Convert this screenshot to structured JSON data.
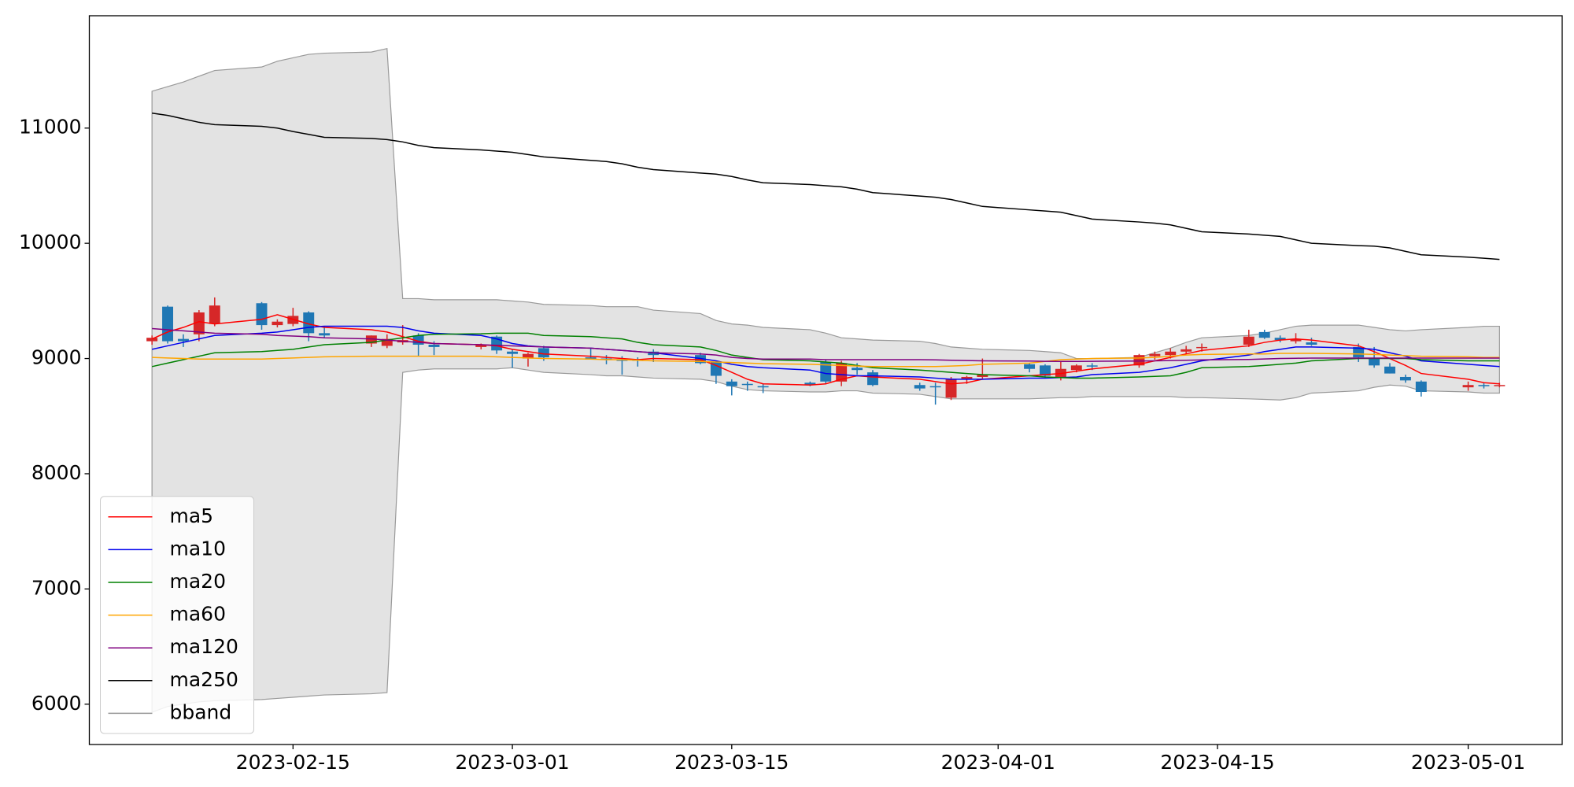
{
  "chart_data": {
    "type": "candlestick",
    "x": [
      "2023-02-06",
      "2023-02-07",
      "2023-02-08",
      "2023-02-09",
      "2023-02-10",
      "2023-02-13",
      "2023-02-14",
      "2023-02-15",
      "2023-02-16",
      "2023-02-17",
      "2023-02-20",
      "2023-02-21",
      "2023-02-22",
      "2023-02-23",
      "2023-02-24",
      "2023-02-27",
      "2023-02-28",
      "2023-03-01",
      "2023-03-02",
      "2023-03-03",
      "2023-03-06",
      "2023-03-07",
      "2023-03-08",
      "2023-03-09",
      "2023-03-10",
      "2023-03-13",
      "2023-03-14",
      "2023-03-15",
      "2023-03-16",
      "2023-03-17",
      "2023-03-20",
      "2023-03-21",
      "2023-03-22",
      "2023-03-23",
      "2023-03-24",
      "2023-03-27",
      "2023-03-28",
      "2023-03-29",
      "2023-03-30",
      "2023-03-31",
      "2023-04-03",
      "2023-04-04",
      "2023-04-05",
      "2023-04-06",
      "2023-04-07",
      "2023-04-10",
      "2023-04-11",
      "2023-04-12",
      "2023-04-13",
      "2023-04-14",
      "2023-04-17",
      "2023-04-18",
      "2023-04-19",
      "2023-04-20",
      "2023-04-21",
      "2023-04-24",
      "2023-04-25",
      "2023-04-26",
      "2023-04-27",
      "2023-04-28",
      "2023-05-01",
      "2023-05-02",
      "2023-05-03"
    ],
    "ohlc": {
      "up_color": "#d62728",
      "down_color": "#1f77b4",
      "open": [
        9150,
        9450,
        9170,
        9210,
        9300,
        9480,
        9290,
        9300,
        9400,
        9220,
        9130,
        9110,
        9140,
        9200,
        9120,
        9100,
        9190,
        9060,
        9000,
        9090,
        9010,
        9000,
        8990,
        8990,
        9060,
        9030,
        8970,
        8800,
        8780,
        8760,
        8790,
        8970,
        8800,
        8920,
        8880,
        8770,
        8760,
        8660,
        8820,
        8840,
        8950,
        8940,
        8830,
        8900,
        8940,
        8940,
        9020,
        9030,
        9060,
        9090,
        9120,
        9230,
        9180,
        9150,
        9140,
        9100,
        9000,
        8930,
        8840,
        8800,
        8750,
        8770,
        8760
      ],
      "high": [
        9200,
        9460,
        9210,
        9420,
        9530,
        9490,
        9340,
        9440,
        9410,
        9280,
        9200,
        9210,
        9290,
        9220,
        9150,
        9130,
        9200,
        9080,
        9050,
        9110,
        9090,
        9030,
        9020,
        9010,
        9080,
        9050,
        8980,
        8820,
        8800,
        8780,
        8800,
        8990,
        8980,
        8960,
        8900,
        8790,
        8790,
        8840,
        8850,
        9000,
        8960,
        8950,
        8970,
        8950,
        8960,
        9040,
        9060,
        9090,
        9110,
        9130,
        9250,
        9250,
        9200,
        9220,
        9180,
        9130,
        9100,
        8960,
        8860,
        8810,
        8800,
        8790,
        8790
      ],
      "low": [
        9120,
        9130,
        9100,
        9150,
        9280,
        9250,
        9270,
        9280,
        9150,
        9180,
        9100,
        9090,
        9120,
        9020,
        9030,
        9080,
        9040,
        8920,
        8930,
        8980,
        8990,
        8950,
        8860,
        8930,
        8970,
        8950,
        8780,
        8680,
        8720,
        8700,
        8760,
        8780,
        8760,
        8860,
        8760,
        8720,
        8600,
        8640,
        8780,
        8820,
        8880,
        8830,
        8810,
        8880,
        8900,
        8920,
        8990,
        9000,
        9040,
        9060,
        9100,
        9170,
        9140,
        9130,
        9110,
        8970,
        8920,
        8870,
        8790,
        8670,
        8720,
        8740,
        8750
      ],
      "close": [
        9180,
        9150,
        9150,
        9400,
        9460,
        9290,
        9320,
        9370,
        9220,
        9200,
        9200,
        9170,
        9160,
        9120,
        9100,
        9120,
        9070,
        9040,
        9040,
        9010,
        8990,
        8990,
        8980,
        8980,
        9030,
        8960,
        8850,
        8760,
        8770,
        8750,
        8770,
        8800,
        8960,
        8900,
        8770,
        8740,
        8750,
        8820,
        8840,
        8860,
        8910,
        8850,
        8910,
        8940,
        8930,
        9030,
        9040,
        9060,
        9080,
        9100,
        9190,
        9180,
        9160,
        9170,
        9120,
        9010,
        8940,
        8870,
        8810,
        8710,
        8770,
        8760,
        8770
      ]
    },
    "series": [
      {
        "name": "ma5",
        "color": "#ff0000",
        "values": [
          9170,
          9230,
          9270,
          9320,
          9300,
          9340,
          9380,
          9340,
          9300,
          9270,
          9250,
          9230,
          9190,
          9150,
          9130,
          9120,
          9110,
          9080,
          9060,
          9040,
          9020,
          9010,
          9000,
          8990,
          9000,
          8990,
          8940,
          8880,
          8820,
          8780,
          8770,
          8780,
          8820,
          8850,
          8840,
          8820,
          8800,
          8780,
          8790,
          8820,
          8850,
          8860,
          8870,
          8890,
          8910,
          8950,
          8980,
          9010,
          9040,
          9070,
          9110,
          9140,
          9160,
          9170,
          9160,
          9110,
          9060,
          9000,
          8940,
          8870,
          8820,
          8790,
          8780
        ]
      },
      {
        "name": "ma10",
        "color": "#0000ee",
        "values": [
          9080,
          9110,
          9140,
          9170,
          9200,
          9220,
          9230,
          9250,
          9270,
          9280,
          9280,
          9280,
          9270,
          9240,
          9220,
          9200,
          9170,
          9130,
          9110,
          9100,
          9090,
          9080,
          9070,
          9060,
          9050,
          9000,
          8980,
          8950,
          8930,
          8920,
          8900,
          8870,
          8860,
          8850,
          8850,
          8840,
          8830,
          8820,
          8820,
          8820,
          8830,
          8830,
          8835,
          8840,
          8860,
          8880,
          8900,
          8920,
          8950,
          8980,
          9030,
          9060,
          9080,
          9100,
          9100,
          9090,
          9080,
          9050,
          9020,
          8980,
          8950,
          8940,
          8930
        ]
      },
      {
        "name": "ma20",
        "color": "#008000",
        "values": [
          8930,
          8960,
          8990,
          9020,
          9050,
          9060,
          9070,
          9080,
          9100,
          9120,
          9140,
          9160,
          9180,
          9200,
          9210,
          9215,
          9220,
          9220,
          9220,
          9200,
          9190,
          9180,
          9170,
          9140,
          9120,
          9100,
          9070,
          9030,
          9010,
          8990,
          8980,
          8970,
          8960,
          8940,
          8920,
          8900,
          8890,
          8880,
          8870,
          8860,
          8850,
          8840,
          8835,
          8830,
          8830,
          8840,
          8845,
          8850,
          8880,
          8920,
          8930,
          8940,
          8950,
          8960,
          8980,
          9000,
          9000,
          9000,
          9000,
          8990,
          8980,
          8980,
          8980
        ]
      },
      {
        "name": "ma60",
        "color": "#ffa500",
        "values": [
          9010,
          9005,
          9000,
          8995,
          8995,
          8995,
          9000,
          9005,
          9010,
          9015,
          9020,
          9020,
          9020,
          9020,
          9020,
          9020,
          9015,
          9010,
          9005,
          9000,
          8995,
          8990,
          8990,
          8985,
          8980,
          8975,
          8970,
          8965,
          8960,
          8955,
          8950,
          8945,
          8940,
          8935,
          8930,
          8930,
          8930,
          8935,
          8940,
          8950,
          8960,
          8975,
          8990,
          8995,
          9000,
          9005,
          9010,
          9020,
          9030,
          9035,
          9040,
          9040,
          9045,
          9045,
          9045,
          9040,
          9035,
          9030,
          9025,
          9020,
          9015,
          9010,
          9010
        ]
      },
      {
        "name": "ma120",
        "color": "#800080",
        "values": [
          9260,
          9250,
          9240,
          9230,
          9220,
          9210,
          9200,
          9195,
          9190,
          9180,
          9170,
          9160,
          9150,
          9140,
          9130,
          9120,
          9115,
          9110,
          9105,
          9100,
          9090,
          9080,
          9070,
          9060,
          9050,
          9040,
          9030,
          9010,
          9000,
          8995,
          8995,
          8990,
          8990,
          8990,
          8990,
          8990,
          8988,
          8985,
          8982,
          8980,
          8978,
          8976,
          8975,
          8975,
          8976,
          8978,
          8980,
          8982,
          8985,
          8988,
          8992,
          8996,
          9000,
          9002,
          9004,
          9004,
          9004,
          9004,
          9004,
          9004,
          9004,
          9004,
          9004
        ]
      },
      {
        "name": "ma250",
        "color": "#000000",
        "values": [
          11130,
          11110,
          11080,
          11050,
          11030,
          11015,
          11000,
          10970,
          10945,
          10920,
          10910,
          10900,
          10880,
          10850,
          10830,
          10810,
          10800,
          10790,
          10770,
          10750,
          10720,
          10710,
          10690,
          10660,
          10640,
          10610,
          10600,
          10580,
          10550,
          10525,
          10510,
          10500,
          10490,
          10470,
          10440,
          10410,
          10400,
          10380,
          10350,
          10320,
          10290,
          10280,
          10270,
          10240,
          10210,
          10185,
          10175,
          10160,
          10130,
          10100,
          10080,
          10070,
          10060,
          10030,
          10000,
          9980,
          9975,
          9960,
          9930,
          9900,
          9880,
          9870,
          9860
        ]
      }
    ],
    "band": {
      "name": "bband",
      "color": "#999999",
      "fill": "#e3e3e3",
      "upper": [
        11320,
        11360,
        11400,
        11450,
        11500,
        11530,
        11580,
        11610,
        11640,
        11650,
        11660,
        11690,
        9520,
        9520,
        9510,
        9510,
        9510,
        9500,
        9490,
        9470,
        9460,
        9450,
        9450,
        9450,
        9420,
        9390,
        9330,
        9300,
        9290,
        9270,
        9250,
        9220,
        9180,
        9170,
        9160,
        9150,
        9130,
        9100,
        9090,
        9080,
        9070,
        9060,
        9050,
        9000,
        9000,
        9010,
        9050,
        9090,
        9140,
        9180,
        9200,
        9220,
        9250,
        9280,
        9290,
        9290,
        9270,
        9250,
        9240,
        9250,
        9270,
        9280,
        9280
      ],
      "lower": [
        5930,
        5980,
        6000,
        6020,
        6030,
        6040,
        6050,
        6060,
        6070,
        6080,
        6090,
        6100,
        8880,
        8900,
        8910,
        8910,
        8910,
        8920,
        8900,
        8880,
        8860,
        8850,
        8850,
        8840,
        8830,
        8820,
        8800,
        8760,
        8730,
        8720,
        8710,
        8710,
        8720,
        8720,
        8700,
        8690,
        8670,
        8650,
        8650,
        8650,
        8650,
        8655,
        8660,
        8660,
        8670,
        8670,
        8670,
        8670,
        8660,
        8660,
        8650,
        8645,
        8640,
        8660,
        8700,
        8720,
        8750,
        8770,
        8760,
        8720,
        8710,
        8700,
        8700
      ]
    },
    "xlim": [
      "2023-02-02",
      "2023-05-07"
    ],
    "xticks": [
      "2023-02-15",
      "2023-03-01",
      "2023-03-15",
      "2023-04-01",
      "2023-04-15",
      "2023-05-01"
    ],
    "ylim": [
      5650,
      11975
    ],
    "yticks": [
      6000,
      7000,
      8000,
      9000,
      10000,
      11000
    ],
    "legend": "lower left"
  }
}
